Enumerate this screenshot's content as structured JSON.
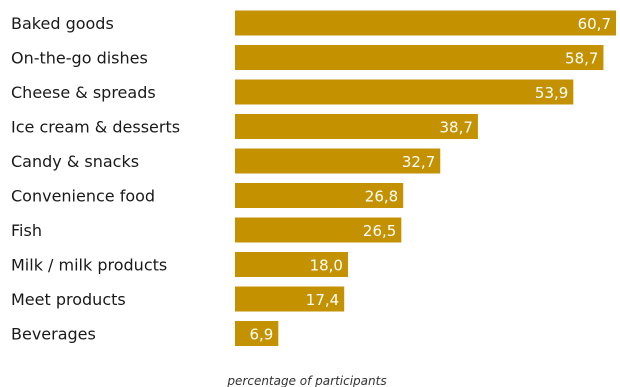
{
  "chart_data": {
    "type": "bar",
    "orientation": "horizontal",
    "categories": [
      "Baked goods",
      "On-the-go dishes",
      "Cheese & spreads",
      "Ice cream & desserts",
      "Candy & snacks",
      "Convenience food",
      "Fish",
      "Milk / milk products",
      "Meet products",
      "Beverages"
    ],
    "values": [
      60.7,
      58.7,
      53.9,
      38.7,
      32.7,
      26.8,
      26.5,
      18.0,
      17.4,
      6.9
    ],
    "value_labels": [
      "60,7",
      "58,7",
      "53,9",
      "38,7",
      "32,7",
      "26,8",
      "26,5",
      "18,0",
      "17,4",
      "6,9"
    ],
    "title": "",
    "xlabel": "percentage of participants",
    "ylabel": "",
    "xlim": [
      0,
      60.7
    ],
    "grid": false,
    "legend": "none",
    "bar_color": "#c49200"
  }
}
